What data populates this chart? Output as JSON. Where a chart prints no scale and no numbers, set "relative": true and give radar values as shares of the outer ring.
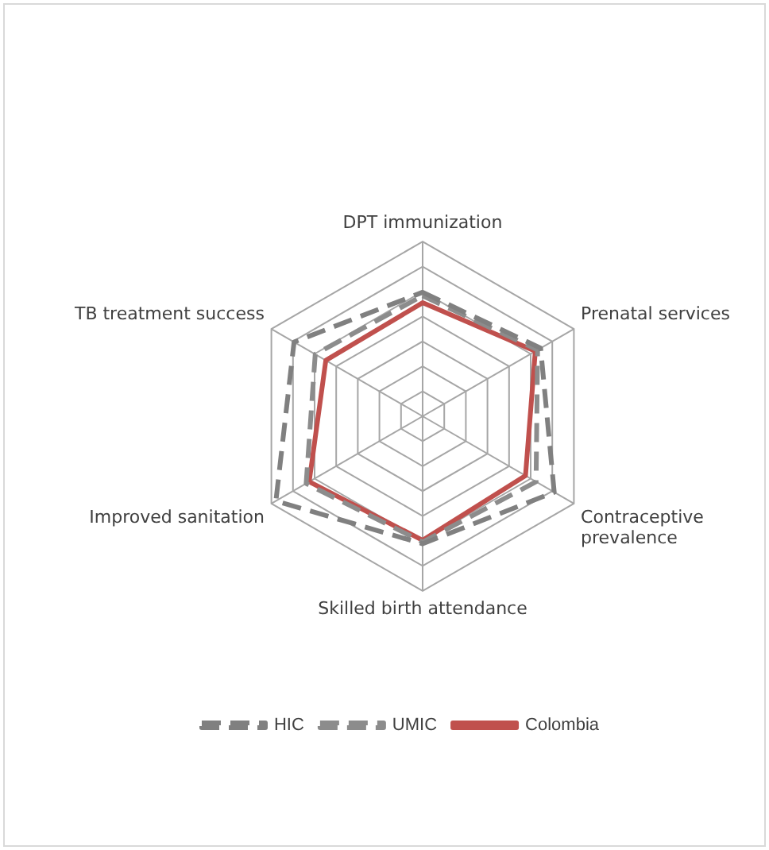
{
  "chart_data": {
    "type": "radar",
    "relative": true,
    "categories": [
      "DPT immunization",
      "Prenatal services",
      "Contraceptive\nprevalence",
      "Skilled birth attendance",
      "Improved sanitation",
      "TB treatment success"
    ],
    "series": [
      {
        "name": "HIC",
        "color": "#808080",
        "line_style": "dashed",
        "values": [
          0.71,
          0.78,
          0.87,
          0.73,
          0.97,
          0.85
        ]
      },
      {
        "name": "UMIC",
        "color": "#8c8c8c",
        "line_style": "dashed",
        "values": [
          0.69,
          0.76,
          0.75,
          0.72,
          0.77,
          0.71
        ]
      },
      {
        "name": "Colombia",
        "color": "#c0504d",
        "line_style": "solid",
        "values": [
          0.65,
          0.745,
          0.68,
          0.71,
          0.75,
          0.64
        ]
      }
    ],
    "grid": true,
    "legend": "bottom",
    "marker": "none"
  }
}
